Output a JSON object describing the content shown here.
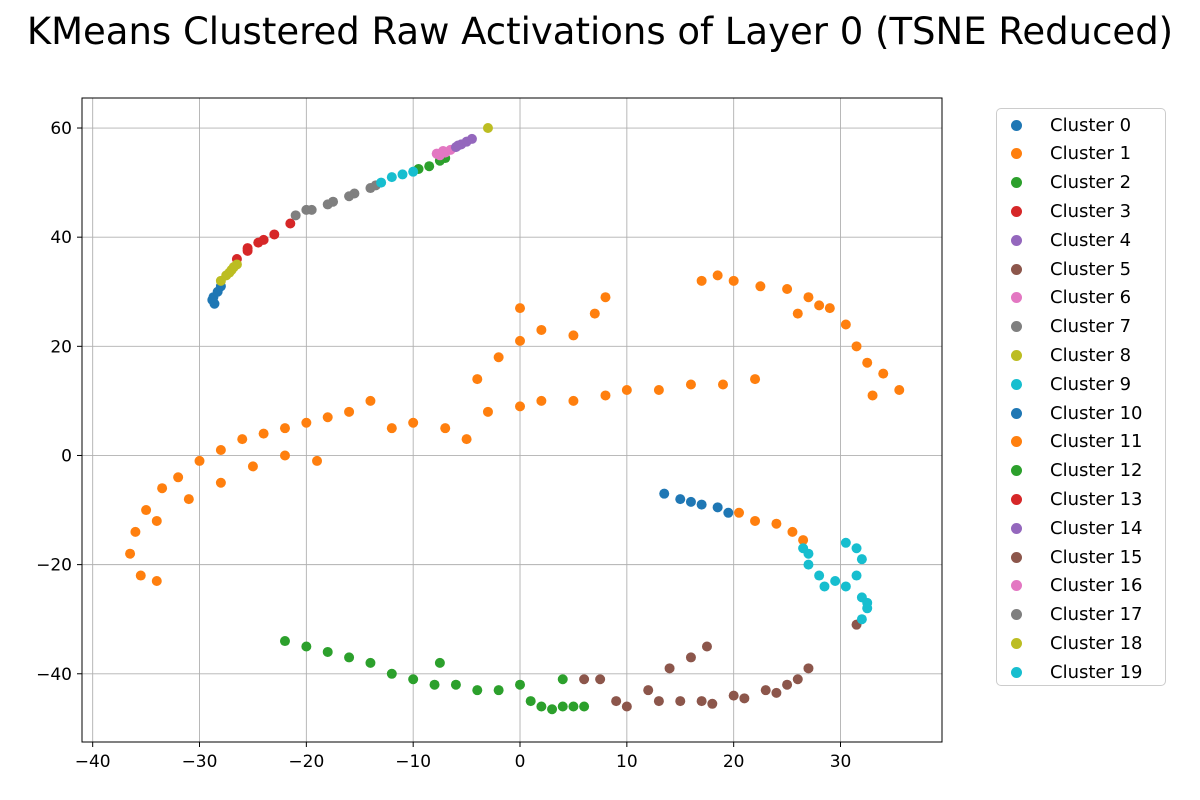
{
  "chart_data": {
    "type": "scatter",
    "title": "KMeans Clustered Raw Activations of Layer 0 (TSNE Reduced)",
    "xlabel": "",
    "ylabel": "",
    "xlim": [
      -41,
      39.5
    ],
    "ylim": [
      -52.5,
      65.5
    ],
    "xticks": [
      -40,
      -30,
      -20,
      -10,
      0,
      10,
      20,
      30
    ],
    "yticks": [
      -40,
      -20,
      0,
      20,
      40,
      60
    ],
    "xtick_labels": [
      "−40",
      "−30",
      "−20",
      "−10",
      "0",
      "10",
      "20",
      "30"
    ],
    "ytick_labels": [
      "−40",
      "−20",
      "0",
      "20",
      "40",
      "60"
    ],
    "grid": true,
    "legend_position": "outside-right",
    "series": [
      {
        "name": "Cluster 0",
        "color": "#1f77b4",
        "points": [
          [
            -28.6,
            27.8
          ],
          [
            -28.7,
            29.0
          ],
          [
            -28.3,
            30.0
          ],
          [
            -28.0,
            31.0
          ],
          [
            -28.8,
            28.5
          ]
        ]
      },
      {
        "name": "Cluster 1",
        "color": "#ff7f0e",
        "points": [
          [
            -36.5,
            -18
          ],
          [
            -35.5,
            -22
          ],
          [
            -34,
            -23
          ],
          [
            -36,
            -14
          ],
          [
            -35,
            -10
          ],
          [
            -33.5,
            -6
          ],
          [
            -32,
            -4
          ],
          [
            -30,
            -1
          ],
          [
            -28,
            1
          ],
          [
            -26,
            3
          ],
          [
            -24,
            4
          ],
          [
            -22,
            5
          ],
          [
            -20,
            6
          ],
          [
            -18,
            7
          ],
          [
            -16,
            8
          ],
          [
            -14,
            10
          ],
          [
            -12,
            5
          ],
          [
            -10,
            6
          ],
          [
            -7,
            5
          ],
          [
            -5,
            3
          ],
          [
            -3,
            8
          ],
          [
            0,
            9
          ],
          [
            2,
            10
          ],
          [
            5,
            10
          ],
          [
            8,
            11
          ],
          [
            10,
            12
          ],
          [
            13,
            12
          ],
          [
            16,
            13
          ],
          [
            19,
            13
          ],
          [
            22,
            14
          ],
          [
            -4,
            14
          ],
          [
            -2,
            18
          ],
          [
            0,
            21
          ],
          [
            2,
            23
          ],
          [
            5,
            22
          ],
          [
            7,
            26
          ],
          [
            8,
            29
          ],
          [
            0,
            27
          ],
          [
            -34,
            -12
          ],
          [
            -31,
            -8
          ],
          [
            -28,
            -5
          ],
          [
            -25,
            -2
          ],
          [
            -22,
            0
          ],
          [
            -19,
            -1
          ]
        ]
      },
      {
        "name": "Cluster 2",
        "color": "#2ca02c",
        "points": [
          [
            -8.5,
            53
          ],
          [
            -7.5,
            54
          ],
          [
            -9.5,
            52.5
          ],
          [
            -7,
            54.5
          ]
        ]
      },
      {
        "name": "Cluster 3",
        "color": "#d62728",
        "points": [
          [
            -26.5,
            36
          ],
          [
            -25.5,
            37.5
          ],
          [
            -24.5,
            39
          ],
          [
            -23,
            40.5
          ],
          [
            -21.5,
            42.5
          ]
        ]
      },
      {
        "name": "Cluster 4",
        "color": "#9467bd",
        "points": [
          [
            -5.5,
            57
          ],
          [
            -5,
            57.5
          ],
          [
            -4.5,
            58
          ]
        ]
      },
      {
        "name": "Cluster 5",
        "color": "#8c564b",
        "points": [
          [
            6,
            -41
          ],
          [
            9,
            -45
          ],
          [
            12,
            -43
          ],
          [
            14,
            -39
          ],
          [
            16,
            -37
          ],
          [
            17.5,
            -35
          ],
          [
            13,
            -45
          ],
          [
            17,
            -45
          ],
          [
            20,
            -44
          ],
          [
            23,
            -43
          ],
          [
            25,
            -42
          ],
          [
            27,
            -39
          ],
          [
            31.5,
            -31
          ]
        ]
      },
      {
        "name": "Cluster 6",
        "color": "#e377c2",
        "points": [
          [
            -7.5,
            55
          ],
          [
            -7,
            55.5
          ],
          [
            -6.5,
            56
          ]
        ]
      },
      {
        "name": "Cluster 7",
        "color": "#7f7f7f",
        "points": [
          [
            -21,
            44
          ],
          [
            -19.5,
            45
          ],
          [
            -17.5,
            46.5
          ],
          [
            -15.5,
            48
          ],
          [
            -14,
            49
          ],
          [
            -13.5,
            49.5
          ]
        ]
      },
      {
        "name": "Cluster 8",
        "color": "#bcbd22",
        "points": [
          [
            -28,
            32
          ],
          [
            -27.5,
            33
          ],
          [
            -27,
            34
          ],
          [
            -26.5,
            35
          ],
          [
            -3,
            60
          ]
        ]
      },
      {
        "name": "Cluster 9",
        "color": "#17becf",
        "points": [
          [
            -13,
            50
          ],
          [
            -12,
            51
          ],
          [
            -11,
            51.5
          ],
          [
            -10,
            52
          ]
        ]
      },
      {
        "name": "Cluster 10",
        "color": "#1f77b4",
        "points": [
          [
            13.5,
            -7
          ],
          [
            15,
            -8
          ],
          [
            16,
            -8.5
          ],
          [
            17,
            -9
          ],
          [
            18.5,
            -9.5
          ],
          [
            19.5,
            -10.5
          ]
        ]
      },
      {
        "name": "Cluster 11",
        "color": "#ff7f0e",
        "points": [
          [
            17,
            32
          ],
          [
            18.5,
            33
          ],
          [
            20,
            32
          ],
          [
            22.5,
            31
          ],
          [
            25,
            30.5
          ],
          [
            27,
            29
          ],
          [
            29,
            27
          ],
          [
            30.5,
            24
          ],
          [
            31.5,
            20
          ],
          [
            32.5,
            17
          ],
          [
            34,
            15
          ],
          [
            35.5,
            12
          ],
          [
            33,
            11
          ],
          [
            20.5,
            -10.5
          ],
          [
            22,
            -12
          ],
          [
            24,
            -12.5
          ],
          [
            25.5,
            -14
          ],
          [
            26.5,
            -15.5
          ],
          [
            28,
            27.5
          ],
          [
            26,
            26
          ]
        ]
      },
      {
        "name": "Cluster 12",
        "color": "#2ca02c",
        "points": [
          [
            -22,
            -34
          ],
          [
            -20,
            -35
          ],
          [
            -18,
            -36
          ],
          [
            -16,
            -37
          ],
          [
            -14,
            -38
          ],
          [
            -12,
            -40
          ],
          [
            -10,
            -41
          ],
          [
            -8,
            -42
          ],
          [
            -6,
            -42
          ],
          [
            -4,
            -43
          ],
          [
            -2,
            -43
          ],
          [
            0,
            -42
          ],
          [
            1,
            -45
          ],
          [
            2,
            -46
          ],
          [
            3,
            -46.5
          ],
          [
            4,
            -46
          ],
          [
            5,
            -46
          ],
          [
            6,
            -46
          ],
          [
            4,
            -41
          ],
          [
            -7.5,
            -38
          ]
        ]
      },
      {
        "name": "Cluster 13",
        "color": "#d62728",
        "points": [
          [
            -25.5,
            38
          ],
          [
            -24,
            39.5
          ]
        ]
      },
      {
        "name": "Cluster 14",
        "color": "#9467bd",
        "points": [
          [
            -6,
            56.5
          ],
          [
            -5.8,
            56.8
          ]
        ]
      },
      {
        "name": "Cluster 15",
        "color": "#8c564b",
        "points": [
          [
            7.5,
            -41
          ],
          [
            10,
            -46
          ],
          [
            15,
            -45
          ],
          [
            18,
            -45.5
          ],
          [
            21,
            -44.5
          ],
          [
            24,
            -43.5
          ],
          [
            26,
            -41
          ]
        ]
      },
      {
        "name": "Cluster 16",
        "color": "#e377c2",
        "points": [
          [
            -7.8,
            55.3
          ],
          [
            -7.2,
            55.8
          ]
        ]
      },
      {
        "name": "Cluster 17",
        "color": "#7f7f7f",
        "points": [
          [
            -20,
            45
          ],
          [
            -18,
            46
          ],
          [
            -16,
            47.5
          ]
        ]
      },
      {
        "name": "Cluster 18",
        "color": "#bcbd22",
        "points": [
          [
            -27.2,
            33.5
          ],
          [
            -26.8,
            34.5
          ]
        ]
      },
      {
        "name": "Cluster 19",
        "color": "#17becf",
        "points": [
          [
            26.5,
            -17
          ],
          [
            27,
            -18
          ],
          [
            27,
            -20
          ],
          [
            28,
            -22
          ],
          [
            28.5,
            -24
          ],
          [
            29.5,
            -23
          ],
          [
            30.5,
            -24
          ],
          [
            30.5,
            -16
          ],
          [
            31.5,
            -17
          ],
          [
            32,
            -19
          ],
          [
            31.5,
            -22
          ],
          [
            32,
            -26
          ],
          [
            32.5,
            -28
          ],
          [
            32,
            -30
          ],
          [
            32.5,
            -27
          ]
        ]
      }
    ]
  }
}
